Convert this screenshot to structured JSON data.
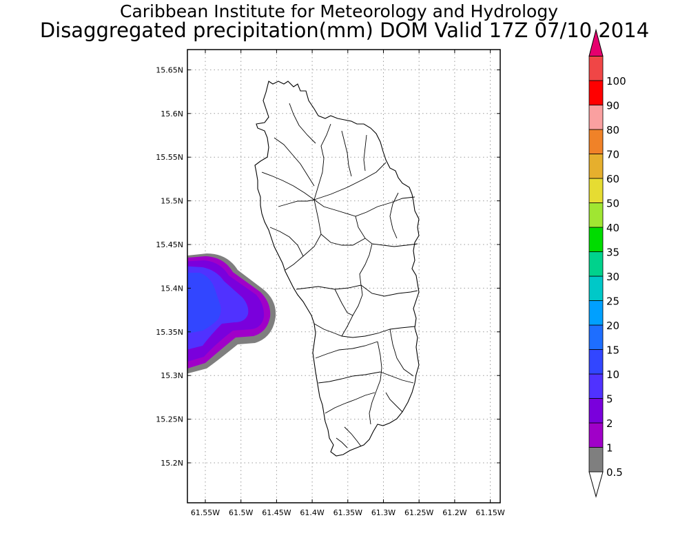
{
  "titles": {
    "line1": "Caribbean Institute for Meteorology and Hydrology",
    "line2": "Disaggregated precipitation(mm) DOM Valid 17Z 07/10 2014"
  },
  "map": {
    "lon_ticks": [
      "61.55W",
      "61.5W",
      "61.45W",
      "61.4W",
      "61.35W",
      "61.3W",
      "61.25W",
      "61.2W",
      "61.15W"
    ],
    "lat_ticks": [
      "15.2N",
      "15.25N",
      "15.3N",
      "15.35N",
      "15.4N",
      "15.45N",
      "15.5N",
      "15.55N",
      "15.6N",
      "15.65N"
    ],
    "grid": true,
    "region": "Dominica",
    "precip_feature": {
      "location": "west coast offshore",
      "levels_present": [
        "0.5",
        "1",
        "2",
        "5",
        "10"
      ],
      "max_level": "10"
    }
  },
  "colorbar": {
    "labels": [
      "0.5",
      "1",
      "2",
      "5",
      "10",
      "15",
      "20",
      "25",
      "30",
      "35",
      "40",
      "50",
      "60",
      "70",
      "80",
      "90",
      "100"
    ],
    "colors": [
      "#7f7f7f",
      "#a000c8",
      "#7a00dc",
      "#5032ff",
      "#3246ff",
      "#1e6eff",
      "#00a0ff",
      "#00c8c8",
      "#00d28c",
      "#00dc00",
      "#a0e632",
      "#e6dc32",
      "#e6af2d",
      "#f08228",
      "#faa0a0",
      "#ff0000",
      "#f04646"
    ],
    "top_arrow_color": "#e6006e",
    "bottom_arrow_color": "#ffffff"
  }
}
